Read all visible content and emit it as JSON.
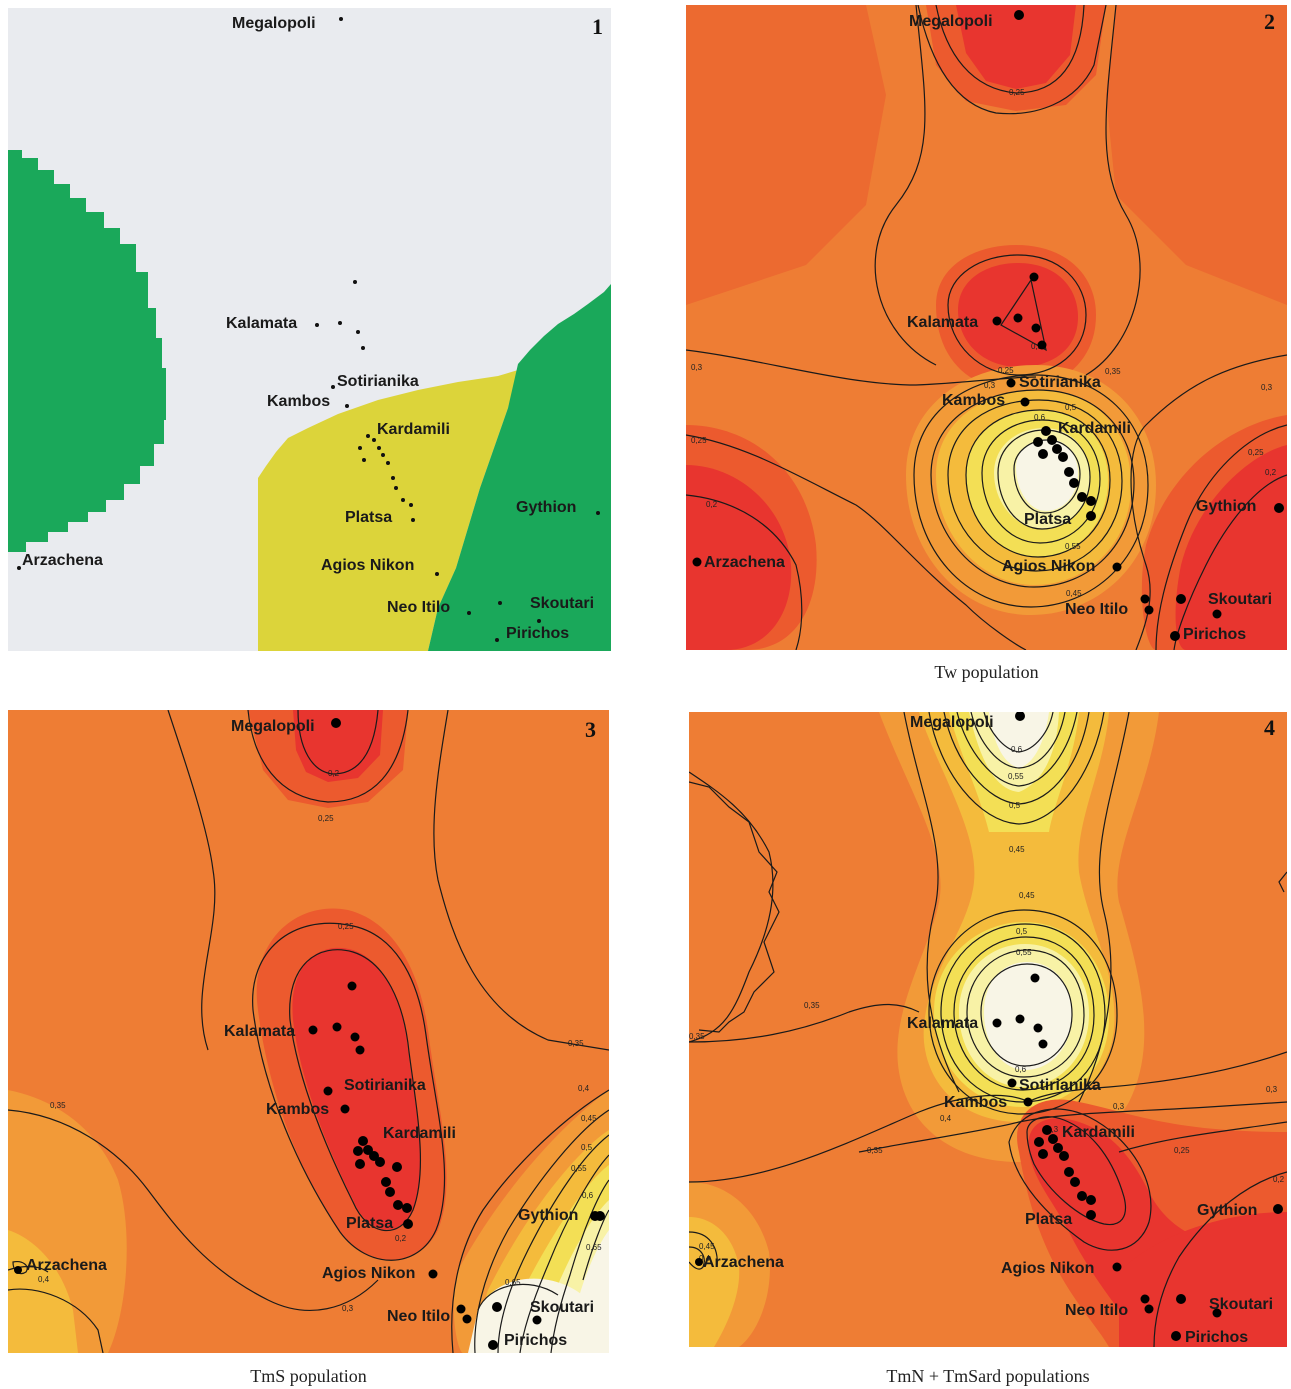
{
  "panels": [
    {
      "number": "1",
      "caption": "",
      "places": [
        "Megalopoli",
        "Kalamata",
        "Sotirianika",
        "Kambos",
        "Kardamili",
        "Platsa",
        "Gythion",
        "Arzachena",
        "Agios Nikon",
        "Neo Itilo",
        "Skoutari",
        "Pirichos"
      ],
      "colors": {
        "background": "#e9ebef",
        "green": "#1aa85a",
        "yellow": "#dcd43a"
      }
    },
    {
      "number": "2",
      "caption": "Tw population",
      "places": [
        "Megalopoli",
        "Kalamata",
        "Sotirianika",
        "Kambos",
        "Kardamili",
        "Platsa",
        "Gythion",
        "Arzachena",
        "Agios Nikon",
        "Neo Itilo",
        "Skoutari",
        "Pirichos"
      ],
      "contour_labels": [
        "0,25",
        "0,3",
        "0,25",
        "0,3",
        "0,35",
        "0,3",
        "0,25",
        "0,2",
        "0,6",
        "0,5",
        "0,55",
        "0,45",
        "0,3",
        "0,25",
        "0,2"
      ]
    },
    {
      "number": "3",
      "caption": "TmS population",
      "places": [
        "Megalopoli",
        "Kalamata",
        "Sotirianika",
        "Kambos",
        "Kardamili",
        "Platsa",
        "Gythion",
        "Arzachena",
        "Agios Nikon",
        "Neo Itilo",
        "Skoutari",
        "Pirichos"
      ],
      "contour_labels": [
        "0,2",
        "0,25",
        "0,25",
        "0,35",
        "0,4",
        "0,45",
        "0,5",
        "0,55",
        "0,6",
        "0,65",
        "0,65",
        "0,35",
        "0,4",
        "0,3",
        "0,2"
      ]
    },
    {
      "number": "4",
      "caption": "TmN + TmSard populations",
      "places": [
        "Megalopoli",
        "Kalamata",
        "Sotirianika",
        "Kambos",
        "Kardamili",
        "Platsa",
        "Gythion",
        "Arzachena",
        "Agios Nikon",
        "Neo Itilo",
        "Skoutari",
        "Pirichos"
      ],
      "contour_labels": [
        "0,6",
        "0,55",
        "0,5",
        "0,45",
        "0,45",
        "0,5",
        "0,55",
        "0,6",
        "0,35",
        "0,35",
        "0,4",
        "0,35",
        "0,3",
        "0,3",
        "0,25",
        "0,2",
        "0,45",
        "0,4",
        "0,3"
      ]
    }
  ],
  "colors": {
    "red": "#e8352f",
    "red_orange": "#ec5a2e",
    "orange": "#ee7d34",
    "orange_light": "#f29a38",
    "yellow_orange": "#f4bb3c",
    "yellow": "#f3df55",
    "pale_yellow": "#f8f2a6",
    "cream": "#f8f5e6"
  }
}
